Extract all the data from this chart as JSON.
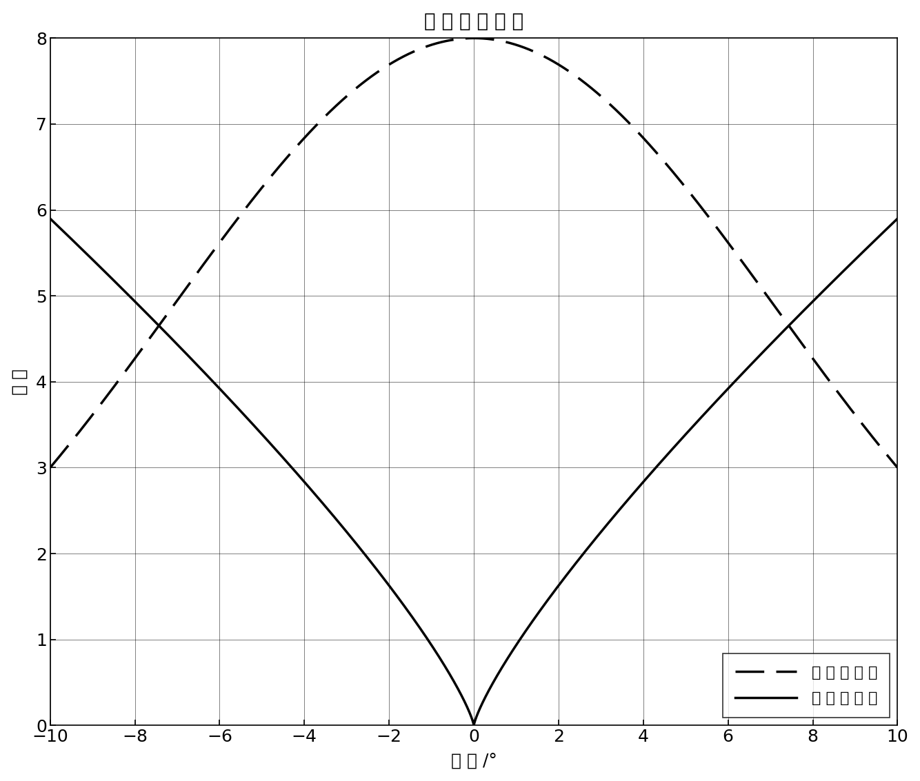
{
  "title": "和 差 波 束 曲 线",
  "xlabel": "角 度 /°",
  "ylabel": "幅 度",
  "xlim": [
    -10,
    10
  ],
  "ylim": [
    0,
    8
  ],
  "xticks": [
    -10,
    -8,
    -6,
    -4,
    -2,
    0,
    2,
    4,
    6,
    8,
    10
  ],
  "yticks": [
    0,
    1,
    2,
    3,
    4,
    5,
    6,
    7,
    8
  ],
  "sum_label": "和 波 束 曲 线",
  "diff_label": "差 波 束 曲 线",
  "line_color": "#000000",
  "background_color": "#ffffff",
  "sum_A": 8.0,
  "sum_k": 0.009808292530117,
  "diff_A": 5.9,
  "diff_alpha": 0.32,
  "title_fontsize": 20,
  "label_fontsize": 18,
  "tick_fontsize": 18,
  "legend_fontsize": 16,
  "linewidth": 2.5
}
